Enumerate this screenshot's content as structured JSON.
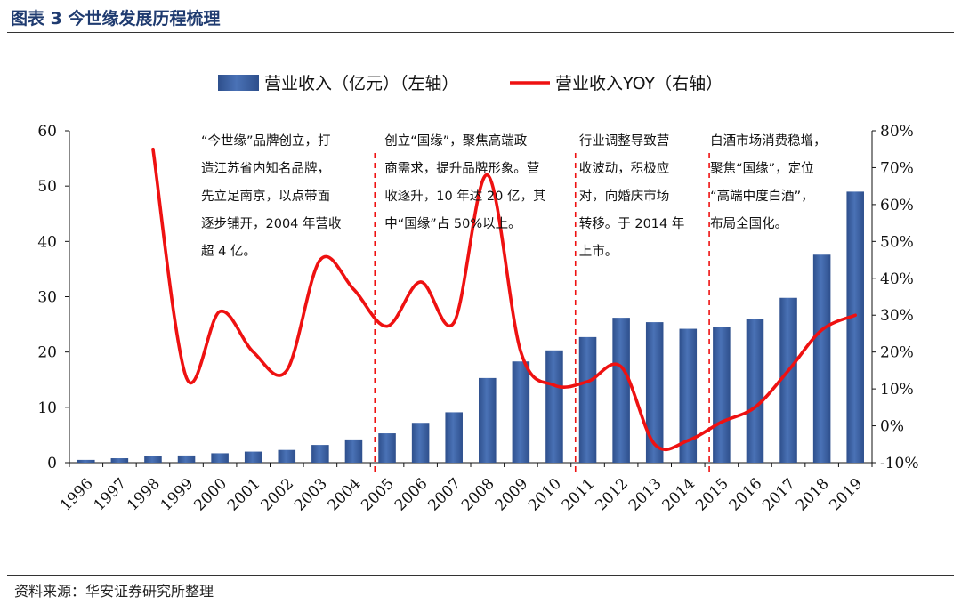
{
  "figure": {
    "title": "图表 3  今世缘发展历程梳理",
    "source": "资料来源：华安证券研究所整理"
  },
  "colors": {
    "bar": "#4a72b6",
    "bar_dark": "#2e4f8c",
    "line": "#ee1111",
    "divider": "#ee1111",
    "axis": "#111111",
    "title": "#1f3b70"
  },
  "chart_data": {
    "type": "bar+line",
    "title": "",
    "categories": [
      "1996",
      "1997",
      "1998",
      "1999",
      "2000",
      "2001",
      "2002",
      "2003",
      "2004",
      "2005",
      "2006",
      "2007",
      "2008",
      "2009",
      "2010",
      "2011",
      "2012",
      "2013",
      "2014",
      "2015",
      "2016",
      "2017",
      "2018",
      "2019"
    ],
    "series": [
      {
        "name": "营业收入（亿元）（左轴）",
        "type": "bar",
        "axis": "left",
        "values": [
          0.5,
          0.8,
          1.2,
          1.3,
          1.7,
          2.0,
          2.3,
          3.2,
          4.2,
          5.3,
          7.2,
          9.1,
          15.3,
          18.3,
          20.3,
          22.7,
          26.2,
          25.4,
          24.2,
          24.5,
          25.9,
          29.8,
          37.6,
          49.0
        ]
      },
      {
        "name": "营业收入YOY（右轴）",
        "type": "line",
        "axis": "right",
        "unit": "%",
        "values": [
          null,
          null,
          75,
          13,
          31,
          20,
          15,
          45,
          37,
          27,
          39,
          28,
          68,
          20,
          11,
          12,
          16,
          -5,
          -4,
          1,
          5,
          15,
          26,
          30
        ]
      }
    ],
    "y_left": {
      "min": 0,
      "max": 60,
      "ticks": [
        "0",
        "10",
        "20",
        "30",
        "40",
        "50",
        "60"
      ]
    },
    "y_right": {
      "min": -10,
      "max": 80,
      "ticks": [
        "-10%",
        "0%",
        "10%",
        "20%",
        "30%",
        "40%",
        "50%",
        "60%",
        "70%",
        "80%"
      ]
    },
    "legend": {
      "placement": "top-center",
      "bar_label": "营业收入（亿元）（左轴）",
      "line_label": "营业收入YOY（右轴）"
    },
    "dividers": [
      "2005",
      "2011",
      "2015"
    ],
    "annotations": [
      {
        "after": "1996",
        "lines": [
          "“今世缘”品牌创立，打",
          "造江苏省内知名品牌，",
          "先立足南京，以点带面",
          "逐步铺开，2004 年营收",
          "超 4 亿。"
        ]
      },
      {
        "after": "2005",
        "lines": [
          "创立“国缘”，聚焦高端政",
          "商需求，提升品牌形象。营",
          "收逐升，10 年达 20 亿，其",
          "中“国缘”占 50%以上。"
        ]
      },
      {
        "after": "2011",
        "lines": [
          "行业调整导致营",
          "收波动，积极应",
          "对，向婚庆市场",
          "转移。于 2014 年",
          "上市。"
        ]
      },
      {
        "after": "2015",
        "lines": [
          "白酒市场消费稳增，",
          "聚焦“国缘”，定位",
          "“高端中度白酒”，",
          "布局全国化。"
        ]
      }
    ]
  }
}
